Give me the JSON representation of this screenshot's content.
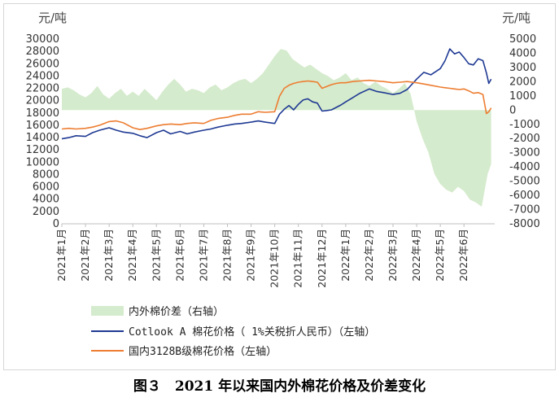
{
  "caption": "图３　2021 年以来国内外棉花价格及价差变化",
  "chart_data": {
    "type": "line",
    "left_axis_unit": "元/吨",
    "right_axis_unit": "元/吨",
    "ylim_left": [
      0,
      30000
    ],
    "yticks_left": [
      0,
      2000,
      4000,
      6000,
      8000,
      10000,
      12000,
      14000,
      16000,
      18000,
      20000,
      22000,
      24000,
      26000,
      28000,
      30000
    ],
    "ylim_right": [
      -8000,
      5000
    ],
    "yticks_right": [
      -8000,
      -7000,
      -6000,
      -5000,
      -4000,
      -3000,
      -2000,
      -1000,
      0,
      1000,
      2000,
      3000,
      4000,
      5000
    ],
    "categories": [
      "2021年1月",
      "2021年2月",
      "2021年3月",
      "2021年4月",
      "2021年5月",
      "2021年6月",
      "2021年7月",
      "2021年8月",
      "2021年9月",
      "2021年10月",
      "2021年11月",
      "2021年12月",
      "2022年1月",
      "2022年2月",
      "2022年3月",
      "2022年4月",
      "2022年5月",
      "2022年6月"
    ],
    "x_range": [
      0,
      18.3
    ],
    "series": [
      {
        "name": "内外棉价差（右轴）",
        "type": "area",
        "axis": "right",
        "color": "#d5ebcd",
        "x": [
          0.0,
          0.25,
          0.5,
          0.75,
          1.0,
          1.25,
          1.5,
          1.75,
          2.0,
          2.25,
          2.5,
          2.75,
          3.0,
          3.25,
          3.5,
          3.75,
          4.0,
          4.25,
          4.5,
          4.75,
          5.0,
          5.25,
          5.5,
          5.75,
          6.0,
          6.25,
          6.5,
          6.75,
          7.0,
          7.25,
          7.5,
          7.75,
          8.0,
          8.25,
          8.5,
          8.75,
          9.0,
          9.25,
          9.5,
          9.75,
          10.0,
          10.25,
          10.5,
          10.75,
          11.0,
          11.25,
          11.5,
          11.75,
          12.0,
          12.25,
          12.5,
          12.75,
          13.0,
          13.25,
          13.5,
          13.75,
          14.0,
          14.25,
          14.5,
          14.75,
          15.0,
          15.25,
          15.5,
          15.75,
          16.0,
          16.25,
          16.5,
          16.75,
          17.0,
          17.25,
          17.5,
          17.75,
          18.0,
          18.15
        ],
        "values": [
          1500,
          1600,
          1400,
          1100,
          900,
          1200,
          1700,
          1100,
          800,
          1200,
          1500,
          1000,
          1300,
          1000,
          1500,
          1100,
          700,
          1300,
          1800,
          2200,
          1800,
          1300,
          1500,
          1400,
          1200,
          1600,
          1800,
          1400,
          1600,
          1900,
          2100,
          2200,
          1900,
          2200,
          2600,
          3200,
          3800,
          4300,
          4200,
          3600,
          3300,
          3000,
          3200,
          2900,
          2600,
          2400,
          2100,
          2300,
          2600,
          2100,
          2300,
          1900,
          1700,
          2000,
          1700,
          1500,
          1200,
          1500,
          1900,
          1100,
          -800,
          -2000,
          -3000,
          -4500,
          -5200,
          -5600,
          -5800,
          -5400,
          -5700,
          -6300,
          -6500,
          -6800,
          -4500,
          -3800
        ]
      },
      {
        "name": "Cotlook A 棉花价格（ 1%关税折人民币）（左轴）",
        "type": "line",
        "axis": "left",
        "color": "#1f3a93",
        "x": [
          0.0,
          0.3,
          0.6,
          1.0,
          1.3,
          1.6,
          2.0,
          2.3,
          2.6,
          3.0,
          3.3,
          3.6,
          4.0,
          4.3,
          4.6,
          5.0,
          5.3,
          5.6,
          6.0,
          6.3,
          6.6,
          7.0,
          7.3,
          7.6,
          8.0,
          8.3,
          8.6,
          9.0,
          9.2,
          9.4,
          9.6,
          9.8,
          10.0,
          10.2,
          10.4,
          10.6,
          10.8,
          11.0,
          11.2,
          11.4,
          11.6,
          11.8,
          12.0,
          12.3,
          12.6,
          13.0,
          13.3,
          13.6,
          14.0,
          14.3,
          14.6,
          15.0,
          15.3,
          15.6,
          16.0,
          16.2,
          16.4,
          16.6,
          16.8,
          17.0,
          17.2,
          17.4,
          17.6,
          17.8,
          17.95,
          18.05,
          18.15
        ],
        "values": [
          13800,
          14000,
          14300,
          14200,
          14800,
          15200,
          15600,
          15200,
          14900,
          14700,
          14300,
          14000,
          14800,
          15200,
          14600,
          15000,
          14600,
          14900,
          15200,
          15400,
          15700,
          16000,
          16200,
          16300,
          16500,
          16700,
          16500,
          16300,
          17800,
          18600,
          19200,
          18500,
          19400,
          20100,
          20300,
          19800,
          19600,
          18300,
          18400,
          18500,
          18900,
          19300,
          19800,
          20500,
          21200,
          21900,
          21500,
          21300,
          21000,
          21200,
          21800,
          23500,
          24600,
          24200,
          25200,
          26500,
          28400,
          27600,
          27900,
          27000,
          26000,
          25800,
          26800,
          26500,
          24500,
          22800,
          23500
        ]
      },
      {
        "name": "国内3128B级棉花价格（左轴）",
        "type": "line",
        "axis": "left",
        "color": "#ed7d31",
        "x": [
          0.0,
          0.3,
          0.6,
          1.0,
          1.3,
          1.6,
          2.0,
          2.3,
          2.6,
          3.0,
          3.3,
          3.6,
          4.0,
          4.3,
          4.6,
          5.0,
          5.3,
          5.6,
          6.0,
          6.3,
          6.6,
          7.0,
          7.3,
          7.6,
          8.0,
          8.3,
          8.6,
          9.0,
          9.2,
          9.4,
          9.6,
          9.8,
          10.0,
          10.2,
          10.4,
          10.6,
          10.8,
          11.0,
          11.2,
          11.4,
          11.6,
          11.8,
          12.0,
          12.3,
          12.6,
          13.0,
          13.3,
          13.6,
          14.0,
          14.3,
          14.6,
          15.0,
          15.3,
          15.6,
          16.0,
          16.2,
          16.4,
          16.6,
          16.8,
          17.0,
          17.2,
          17.4,
          17.6,
          17.8,
          17.95,
          18.05,
          18.15
        ],
        "values": [
          15400,
          15500,
          15400,
          15500,
          15700,
          16000,
          16600,
          16700,
          16400,
          15600,
          15300,
          15500,
          15900,
          16100,
          16200,
          16100,
          16300,
          16400,
          16300,
          16800,
          17100,
          17300,
          17600,
          17800,
          17800,
          18200,
          18100,
          18200,
          20700,
          22000,
          22500,
          22800,
          23000,
          23100,
          23200,
          23100,
          23000,
          22000,
          22300,
          22600,
          22800,
          22900,
          22900,
          23100,
          23200,
          23300,
          23200,
          23100,
          22900,
          23000,
          23100,
          22900,
          22700,
          22500,
          22200,
          22100,
          22000,
          21900,
          21800,
          21900,
          21600,
          21200,
          21300,
          21000,
          17900,
          18200,
          18800
        ]
      }
    ],
    "legend": [
      "内外棉价差（右轴）",
      "Cotlook A 棉花价格（ 1%关税折人民币）（左轴）",
      "国内3128B级棉花价格（左轴）"
    ],
    "legend_position": "bottom-left"
  }
}
